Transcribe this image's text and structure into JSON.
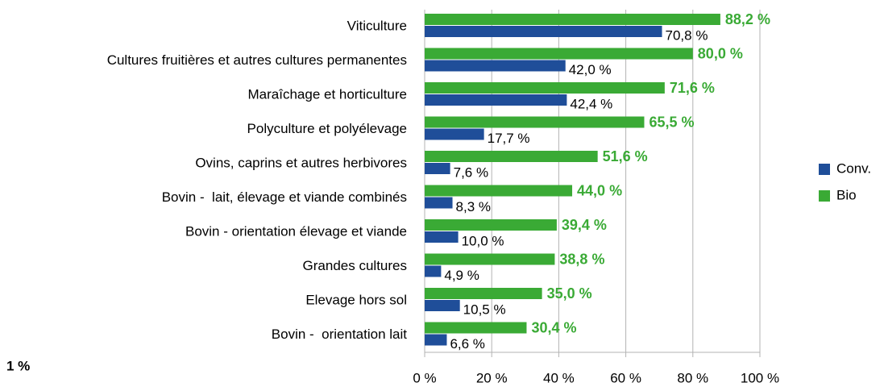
{
  "chart_data": {
    "type": "hbar",
    "categories": [
      "Viticulture",
      "Cultures fruitières et autres cultures permanentes",
      "Maraîchage et horticulture",
      "Polyculture et polyélevage",
      "Ovins, caprins et autres herbivores",
      "Bovin -  lait, élevage et viande combinés",
      "Bovin - orientation élevage et viande",
      "Grandes cultures",
      "Elevage hors sol",
      "Bovin -  orientation lait"
    ],
    "series": [
      {
        "name": "Conv.",
        "color": "#1f4e99",
        "values": [
          70.8,
          42.0,
          42.4,
          17.7,
          7.6,
          8.3,
          10.0,
          4.9,
          10.5,
          6.6
        ],
        "value_labels": [
          "70,8 %",
          "42,0 %",
          "42,4 %",
          "17,7 %",
          "7,6 %",
          "8,3 %",
          "10,0 %",
          "4,9 %",
          "10,5 %",
          "6,6 %"
        ]
      },
      {
        "name": "Bio",
        "color": "#3aaa35",
        "values": [
          88.2,
          80.0,
          71.6,
          65.5,
          51.6,
          44.0,
          39.4,
          38.8,
          35.0,
          30.4
        ],
        "value_labels": [
          "88,2 %",
          "80,0 %",
          "71,6 %",
          "65,5 %",
          "51,6 %",
          "44,0 %",
          "39,4 %",
          "38,8 %",
          "35,0 %",
          "30,4 %"
        ]
      }
    ],
    "xlim": [
      0,
      100
    ],
    "xticks": [
      {
        "value": 0,
        "label": "0 %"
      },
      {
        "value": 20,
        "label": "20 %"
      },
      {
        "value": 40,
        "label": "40 %"
      },
      {
        "value": 60,
        "label": "60 %"
      },
      {
        "value": 80,
        "label": "80 %"
      },
      {
        "value": 100,
        "label": "100 %"
      }
    ],
    "grid": true,
    "legend": "right",
    "annotation": "1 %"
  }
}
